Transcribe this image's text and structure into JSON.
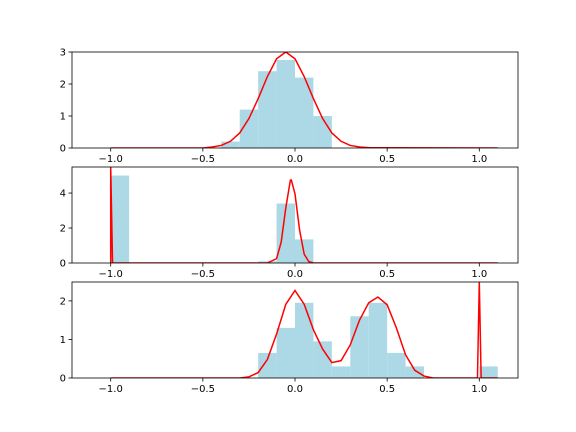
{
  "chart_data": [
    {
      "type": "histogram",
      "color": "#add8e6",
      "bins": [
        -0.4,
        -0.3,
        -0.2,
        -0.1,
        0.0,
        0.1,
        0.2
      ],
      "values": [
        0.2,
        1.2,
        2.4,
        2.75,
        2.2,
        1.0
      ],
      "line": {
        "color": "#ff0000",
        "x": [
          -1.0,
          -0.5,
          -0.45,
          -0.4,
          -0.35,
          -0.3,
          -0.25,
          -0.2,
          -0.15,
          -0.1,
          -0.05,
          0.0,
          0.05,
          0.1,
          0.15,
          0.2,
          0.25,
          0.3,
          0.35,
          0.4,
          1.1
        ],
        "y": [
          0,
          0,
          0.03,
          0.08,
          0.21,
          0.47,
          0.92,
          1.54,
          2.23,
          2.79,
          3.0,
          2.79,
          2.23,
          1.54,
          0.92,
          0.47,
          0.21,
          0.08,
          0.03,
          0.01,
          0
        ]
      },
      "xlim": [
        -1.21,
        1.21
      ],
      "xticks": [
        {
          "value": -1.0,
          "label": "−1.0"
        },
        {
          "value": -0.5,
          "label": "−0.5"
        },
        {
          "value": 0.0,
          "label": "0.0"
        },
        {
          "value": 0.5,
          "label": "0.5"
        },
        {
          "value": 1.0,
          "label": "1.0"
        }
      ],
      "ylim": [
        0,
        3
      ],
      "yticks": [
        0,
        1,
        2,
        3
      ]
    },
    {
      "type": "histogram",
      "color": "#add8e6",
      "bins": [
        -1.0,
        -0.9,
        -0.8,
        -0.7,
        -0.6,
        -0.5,
        -0.4,
        -0.3,
        -0.2,
        -0.1,
        0.0,
        0.1
      ],
      "values": [
        5.0,
        0,
        0,
        0,
        0,
        0,
        0,
        0,
        0.1,
        3.4,
        1.35
      ],
      "line": {
        "color": "#ff0000",
        "x": [
          -1.0,
          -1.0,
          -0.99,
          -0.15,
          -0.1,
          -0.075,
          -0.05,
          -0.025,
          -0.02,
          0.0,
          0.025,
          0.05,
          0.075,
          0.1,
          1.1
        ],
        "y": [
          0,
          5.49,
          0,
          0,
          0.25,
          1.19,
          3.15,
          4.74,
          4.75,
          3.95,
          1.88,
          0.5,
          0.08,
          0,
          0
        ]
      },
      "xlim": [
        -1.21,
        1.21
      ],
      "xticks": [
        {
          "value": -1.0,
          "label": "−1.0"
        },
        {
          "value": -0.5,
          "label": "−0.5"
        },
        {
          "value": 0.0,
          "label": "0.0"
        },
        {
          "value": 0.5,
          "label": "0.5"
        },
        {
          "value": 1.0,
          "label": "1.0"
        }
      ],
      "ylim": [
        0,
        5.49
      ],
      "yticks": [
        0,
        2,
        4
      ]
    },
    {
      "type": "histogram",
      "color": "#add8e6",
      "bins": [
        -0.2,
        -0.1,
        0.0,
        0.1,
        0.2,
        0.3,
        0.4,
        0.5,
        0.6,
        0.7,
        0.8,
        0.9,
        1.0,
        1.1
      ],
      "values": [
        0.65,
        1.3,
        1.95,
        0.95,
        0.3,
        1.6,
        1.95,
        0.65,
        0.3,
        0,
        0,
        0,
        0.3
      ],
      "line": {
        "color": "#ff0000",
        "x": [
          -1.0,
          -0.3,
          -0.25,
          -0.2,
          -0.15,
          -0.1,
          -0.05,
          0.0,
          0.05,
          0.1,
          0.15,
          0.2,
          0.25,
          0.3,
          0.35,
          0.4,
          0.45,
          0.5,
          0.55,
          0.6,
          0.65,
          0.7,
          0.75,
          0.99,
          1.0,
          1.01,
          1.1
        ],
        "y": [
          0,
          0,
          0.03,
          0.14,
          0.48,
          1.14,
          1.91,
          2.27,
          1.91,
          1.25,
          0.75,
          0.4,
          0.45,
          0.86,
          1.5,
          1.95,
          2.1,
          1.9,
          1.3,
          0.6,
          0.2,
          0.05,
          0,
          0,
          2.49,
          0,
          0
        ]
      },
      "xlim": [
        -1.21,
        1.21
      ],
      "xticks": [
        {
          "value": -1.0,
          "label": "−1.0"
        },
        {
          "value": -0.5,
          "label": "−0.5"
        },
        {
          "value": 0.0,
          "label": "0.0"
        },
        {
          "value": 0.5,
          "label": "0.5"
        },
        {
          "value": 1.0,
          "label": "1.0"
        }
      ],
      "ylim": [
        0,
        2.49
      ],
      "yticks": [
        0,
        1,
        2
      ]
    }
  ]
}
